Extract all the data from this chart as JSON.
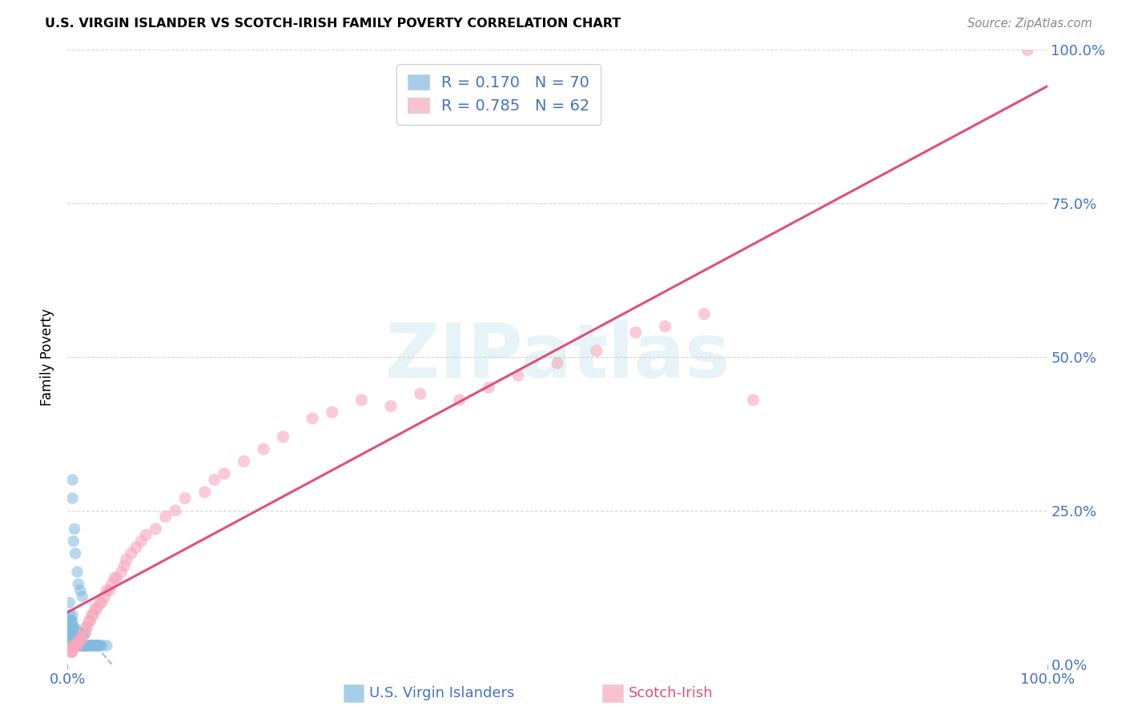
{
  "title": "U.S. VIRGIN ISLANDER VS SCOTCH-IRISH FAMILY POVERTY CORRELATION CHART",
  "source": "Source: ZipAtlas.com",
  "ylabel": "Family Poverty",
  "xlim": [
    0,
    1.0
  ],
  "ylim": [
    0,
    1.0
  ],
  "ytick_values": [
    0.0,
    0.25,
    0.5,
    0.75,
    1.0
  ],
  "ytick_labels": [
    "0.0%",
    "25.0%",
    "50.0%",
    "75.0%",
    "100.0%"
  ],
  "grid_color": "#cccccc",
  "background_color": "#ffffff",
  "watermark_text": "ZIPatlas",
  "watermark_color": "#add8e6",
  "blue_color": "#7fbbdf",
  "pink_color": "#f8a8be",
  "pink_line_color": "#e0507a",
  "blue_dashed_color": "#90bcd8",
  "legend_blue_label": "R = 0.170   N = 70",
  "legend_pink_label": "R = 0.785   N = 62",
  "footer_label1": "U.S. Virgin Islanders",
  "footer_label2": "Scotch-Irish",
  "blue_scatter_x": [
    0.002,
    0.002,
    0.002,
    0.002,
    0.002,
    0.003,
    0.003,
    0.003,
    0.003,
    0.004,
    0.004,
    0.004,
    0.004,
    0.005,
    0.005,
    0.005,
    0.005,
    0.005,
    0.005,
    0.005,
    0.005,
    0.005,
    0.006,
    0.006,
    0.006,
    0.006,
    0.006,
    0.007,
    0.007,
    0.007,
    0.007,
    0.007,
    0.007,
    0.008,
    0.008,
    0.008,
    0.008,
    0.009,
    0.009,
    0.009,
    0.01,
    0.01,
    0.01,
    0.011,
    0.011,
    0.012,
    0.012,
    0.013,
    0.013,
    0.014,
    0.015,
    0.015,
    0.016,
    0.017,
    0.018,
    0.019,
    0.02,
    0.021,
    0.022,
    0.024,
    0.025,
    0.027,
    0.028,
    0.029,
    0.03,
    0.031,
    0.032,
    0.033,
    0.035,
    0.04
  ],
  "blue_scatter_y": [
    0.05,
    0.06,
    0.07,
    0.08,
    0.1,
    0.04,
    0.05,
    0.06,
    0.07,
    0.04,
    0.05,
    0.06,
    0.07,
    0.03,
    0.04,
    0.05,
    0.05,
    0.06,
    0.07,
    0.08,
    0.27,
    0.3,
    0.03,
    0.04,
    0.05,
    0.06,
    0.2,
    0.03,
    0.04,
    0.04,
    0.05,
    0.06,
    0.22,
    0.03,
    0.04,
    0.05,
    0.18,
    0.03,
    0.04,
    0.05,
    0.03,
    0.04,
    0.15,
    0.03,
    0.13,
    0.03,
    0.04,
    0.03,
    0.12,
    0.03,
    0.03,
    0.11,
    0.03,
    0.03,
    0.03,
    0.03,
    0.03,
    0.03,
    0.03,
    0.03,
    0.03,
    0.03,
    0.03,
    0.03,
    0.03,
    0.03,
    0.03,
    0.03,
    0.03,
    0.03
  ],
  "pink_scatter_x": [
    0.003,
    0.004,
    0.005,
    0.006,
    0.007,
    0.008,
    0.009,
    0.01,
    0.012,
    0.013,
    0.015,
    0.016,
    0.017,
    0.018,
    0.019,
    0.02,
    0.022,
    0.023,
    0.025,
    0.026,
    0.028,
    0.03,
    0.033,
    0.035,
    0.038,
    0.04,
    0.043,
    0.045,
    0.048,
    0.05,
    0.055,
    0.058,
    0.06,
    0.065,
    0.07,
    0.075,
    0.08,
    0.09,
    0.1,
    0.11,
    0.12,
    0.14,
    0.15,
    0.16,
    0.18,
    0.2,
    0.22,
    0.25,
    0.27,
    0.3,
    0.33,
    0.36,
    0.4,
    0.43,
    0.46,
    0.5,
    0.54,
    0.58,
    0.61,
    0.65,
    0.7,
    0.98
  ],
  "pink_scatter_y": [
    0.02,
    0.02,
    0.02,
    0.03,
    0.03,
    0.03,
    0.03,
    0.03,
    0.04,
    0.04,
    0.04,
    0.05,
    0.05,
    0.05,
    0.06,
    0.06,
    0.07,
    0.07,
    0.08,
    0.08,
    0.09,
    0.09,
    0.1,
    0.1,
    0.11,
    0.12,
    0.12,
    0.13,
    0.14,
    0.14,
    0.15,
    0.16,
    0.17,
    0.18,
    0.19,
    0.2,
    0.21,
    0.22,
    0.24,
    0.25,
    0.27,
    0.28,
    0.3,
    0.31,
    0.33,
    0.35,
    0.37,
    0.4,
    0.41,
    0.43,
    0.42,
    0.44,
    0.43,
    0.45,
    0.47,
    0.49,
    0.51,
    0.54,
    0.55,
    0.57,
    0.43,
    1.0
  ]
}
